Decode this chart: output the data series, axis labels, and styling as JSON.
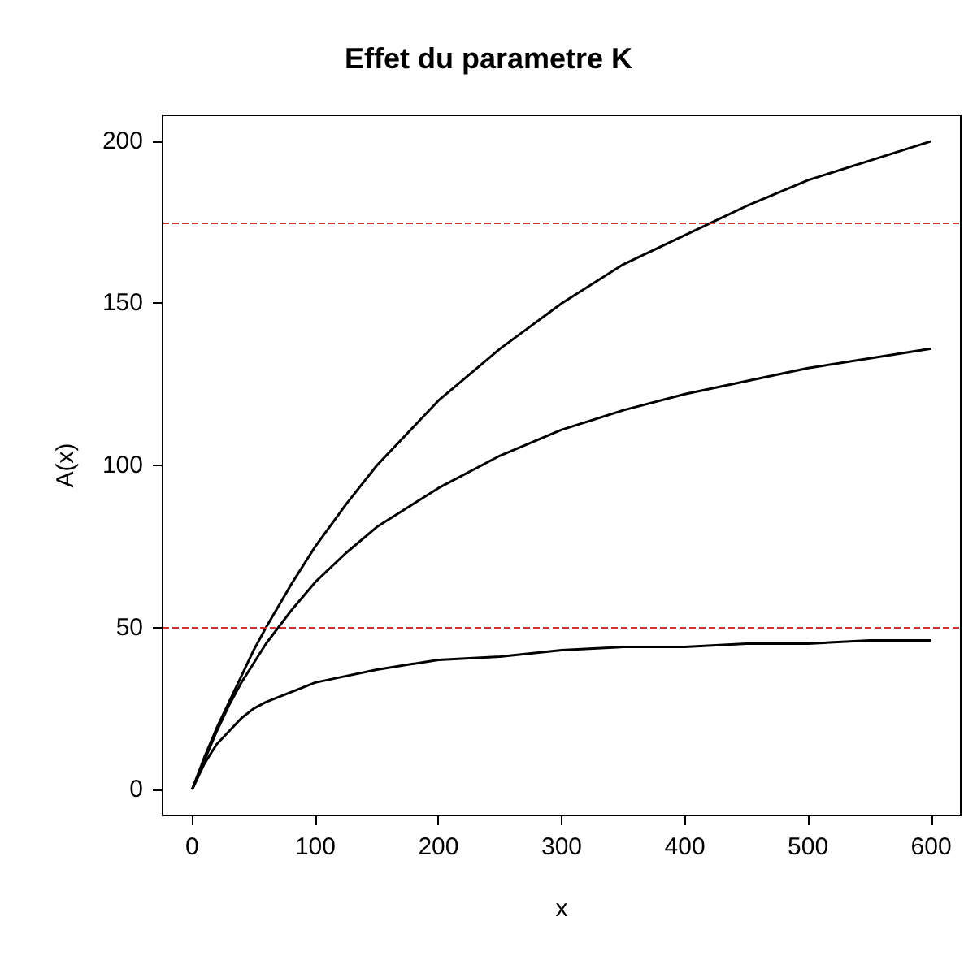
{
  "chart_data": {
    "type": "line",
    "title": "Effet du parametre K",
    "xlabel": "x",
    "ylabel": "A(x)",
    "x": [
      0,
      10,
      20,
      30,
      40,
      50,
      60,
      80,
      100,
      125,
      150,
      200,
      250,
      300,
      350,
      400,
      450,
      500,
      550,
      600
    ],
    "series": [
      {
        "color": "#000000",
        "values": [
          0,
          10,
          19,
          27,
          35,
          43,
          50,
          63,
          75,
          88,
          100,
          120,
          136,
          150,
          162,
          171,
          180,
          188,
          194,
          200
        ]
      },
      {
        "color": "#000000",
        "values": [
          0,
          9,
          18,
          26,
          33,
          39,
          45,
          55,
          64,
          73,
          81,
          93,
          103,
          111,
          117,
          122,
          126,
          130,
          133,
          136
        ]
      },
      {
        "color": "#000000",
        "values": [
          0,
          8,
          14,
          18,
          22,
          25,
          27,
          30,
          33,
          35,
          37,
          40,
          41,
          43,
          44,
          44,
          45,
          45,
          46,
          46
        ]
      }
    ],
    "xlim": [
      -24,
      624
    ],
    "ylim": [
      -8,
      208
    ],
    "xticks": [
      0,
      100,
      200,
      300,
      400,
      500,
      600
    ],
    "yticks": [
      0,
      50,
      100,
      150,
      200
    ],
    "ref_lines": [
      {
        "axis": "y",
        "value": 50,
        "color": "#cd3333",
        "line_style": "dashed"
      },
      {
        "axis": "y",
        "value": 175,
        "color": "#cd3333",
        "line_style": "dashed"
      }
    ],
    "grid": false,
    "marker": "none",
    "line_style": "solid"
  }
}
